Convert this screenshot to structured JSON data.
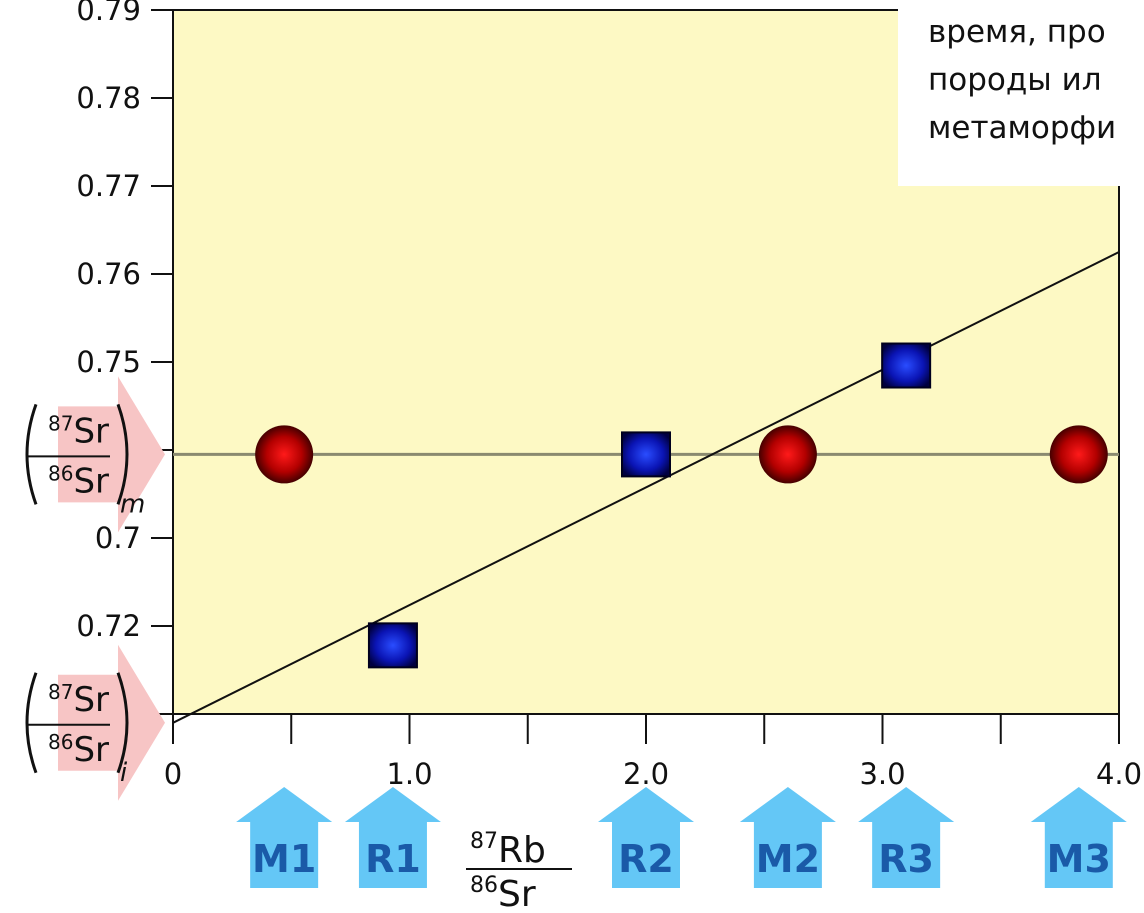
{
  "chart_data": {
    "type": "scatter",
    "xlim": [
      0,
      4.0
    ],
    "ylim": [
      0.71,
      0.79
    ],
    "x_ticks": [
      0,
      0.5,
      1.0,
      1.5,
      2.0,
      2.5,
      3.0,
      3.5,
      4.0
    ],
    "x_tick_labels": [
      "0",
      "",
      "1.0",
      "",
      "2.0",
      "",
      "3.0",
      "",
      "4.0"
    ],
    "y_ticks": [
      0.71,
      0.72,
      0.73,
      0.74,
      0.75,
      0.76,
      0.77,
      0.78,
      0.79
    ],
    "y_tick_labels": [
      "",
      "0.72",
      "0.7",
      "0.7",
      "0.75",
      "0.76",
      "0.77",
      "0.78",
      "0.79"
    ],
    "xlabel": {
      "top_sup": "87",
      "top": "Rb",
      "bottom_sup": "86",
      "bottom": "Sr"
    },
    "background": "#fdf9c4",
    "series": [
      {
        "marker": "circle",
        "color": "#cc0000",
        "x": [
          0.47,
          2.6,
          3.83
        ],
        "y": [
          0.7395,
          0.7395,
          0.7395
        ]
      },
      {
        "marker": "square",
        "color": "#0a14b4",
        "x": [
          0.93,
          2.0,
          3.1
        ],
        "y": [
          0.7178,
          0.7395,
          0.7496
        ]
      }
    ],
    "lines": [
      {
        "name": "horizontal",
        "x": [
          0,
          4.0
        ],
        "y": [
          0.7395,
          0.7395
        ],
        "color": "#8a8a70"
      },
      {
        "name": "isochron",
        "x": [
          0,
          4.0
        ],
        "y": [
          0.709,
          0.7625
        ],
        "color": "#111111"
      }
    ],
    "y_arrows": [
      {
        "y": 0.7395,
        "sup_top": "87",
        "top": "Sr",
        "sup_bottom": "86",
        "bottom": "Sr",
        "subscript": "m"
      },
      {
        "y": 0.709,
        "sup_top": "87",
        "top": "Sr",
        "sup_bottom": "86",
        "bottom": "Sr",
        "subscript": "i"
      }
    ],
    "sample_arrows": [
      {
        "label": "M1",
        "x": 0.47
      },
      {
        "label": "R1",
        "x": 0.93
      },
      {
        "label": "R2",
        "x": 2.0
      },
      {
        "label": "M2",
        "x": 2.6
      },
      {
        "label": "R3",
        "x": 3.1
      },
      {
        "label": "M3",
        "x": 3.83
      }
    ]
  },
  "note": {
    "lines": [
      "время, про",
      "породы ил",
      "метаморфи"
    ]
  }
}
